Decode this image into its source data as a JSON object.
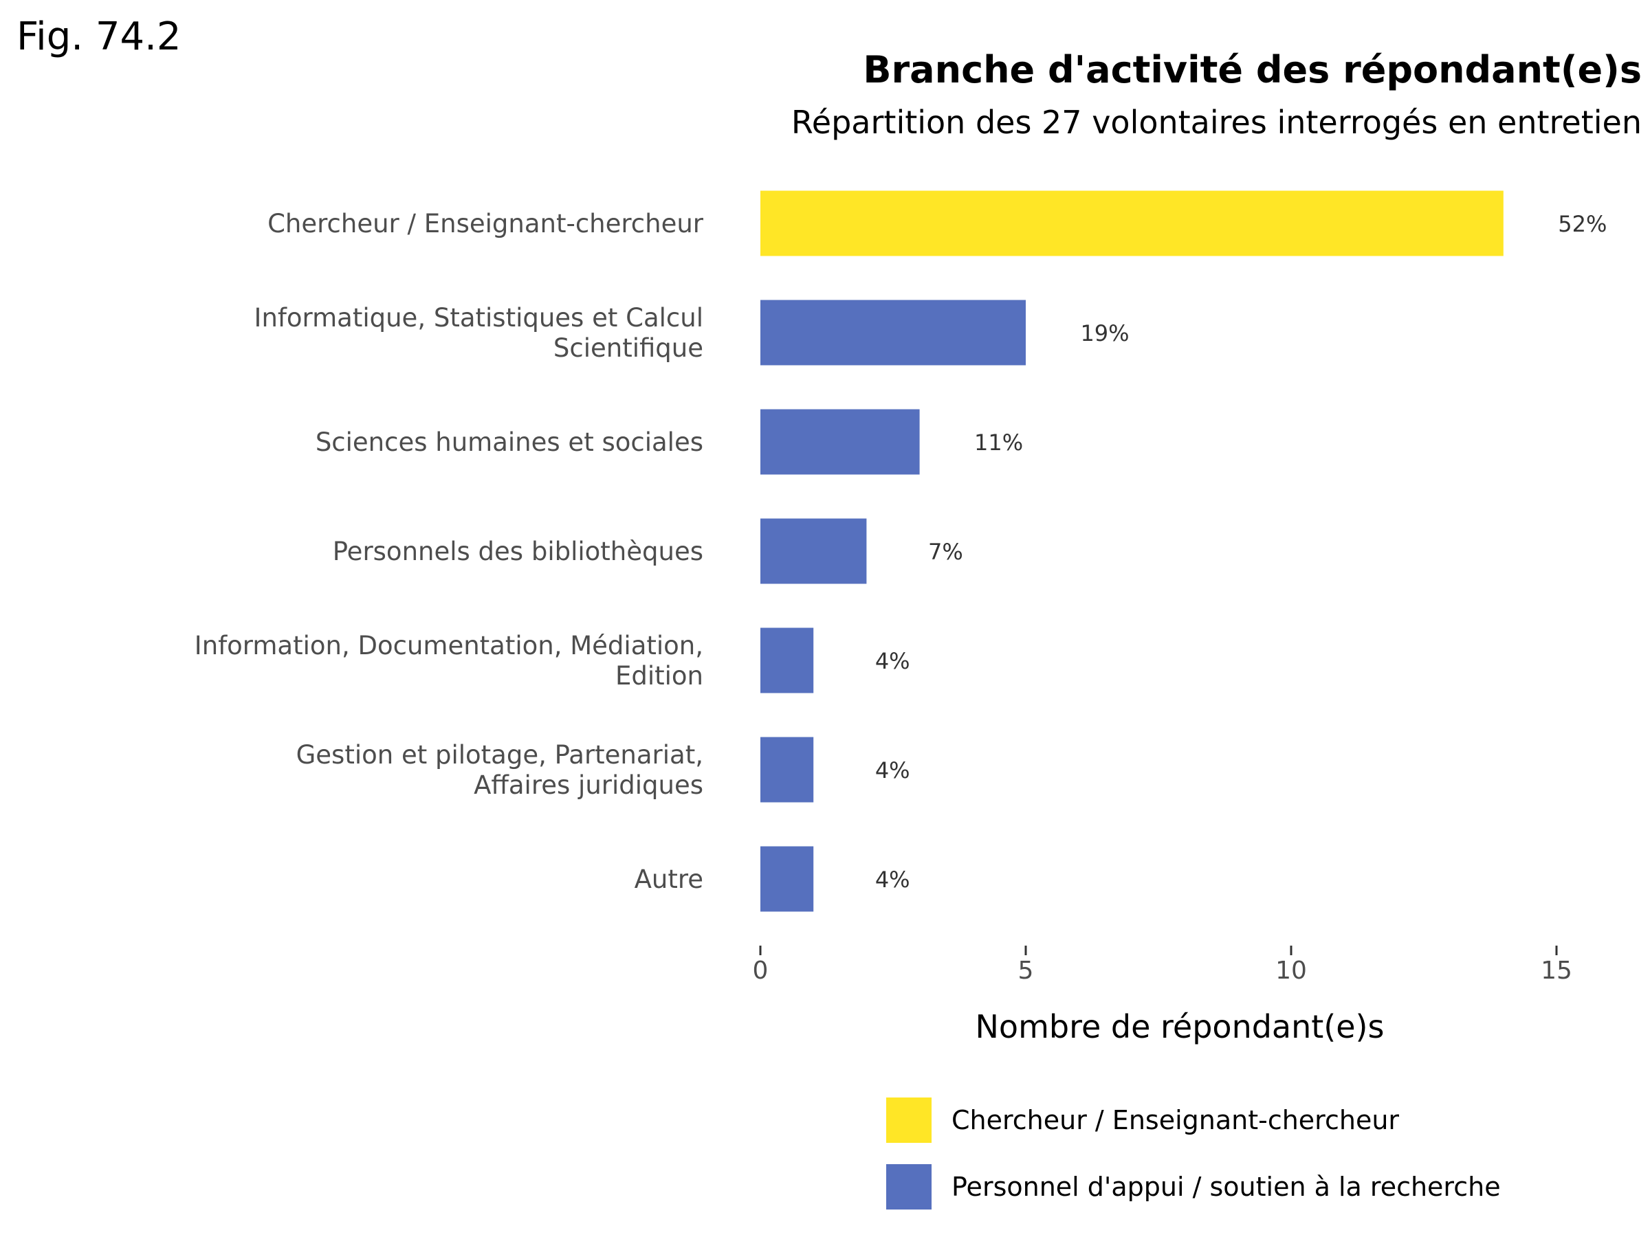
{
  "figure_label": "Fig. 74.2",
  "colors": {
    "chercheur": "#FFE626",
    "appui": "#5670BE"
  },
  "chart_data": {
    "type": "bar",
    "orientation": "horizontal",
    "title": "Branche d'activité des répondant(e)s",
    "subtitle": "Répartition des 27 volontaires interrogés en entretien",
    "xlabel": "Nombre de répondant(e)s",
    "ylabel": "",
    "xlim": [
      0,
      15
    ],
    "xticks": [
      0,
      5,
      10,
      15
    ],
    "grid": false,
    "legend_position": "bottom-right",
    "categories": [
      [
        "Chercheur / Enseignant-chercheur"
      ],
      [
        "Informatique, Statistiques et Calcul",
        "Scientifique"
      ],
      [
        "Sciences humaines et sociales"
      ],
      [
        "Personnels des bibliothèques"
      ],
      [
        "Information, Documentation, Médiation,",
        "Edition"
      ],
      [
        "Gestion et pilotage, Partenariat,",
        "Affaires juridiques"
      ],
      [
        "Autre"
      ]
    ],
    "values": [
      14,
      5,
      3,
      2,
      1,
      1,
      1
    ],
    "labels": [
      "52%",
      "19%",
      "11%",
      "7%",
      "4%",
      "4%",
      "4%"
    ],
    "groups": [
      "chercheur",
      "appui",
      "appui",
      "appui",
      "appui",
      "appui",
      "appui"
    ],
    "legend": [
      {
        "key": "chercheur",
        "label": "Chercheur / Enseignant-chercheur"
      },
      {
        "key": "appui",
        "label": "Personnel d'appui / soutien à la recherche"
      }
    ]
  }
}
